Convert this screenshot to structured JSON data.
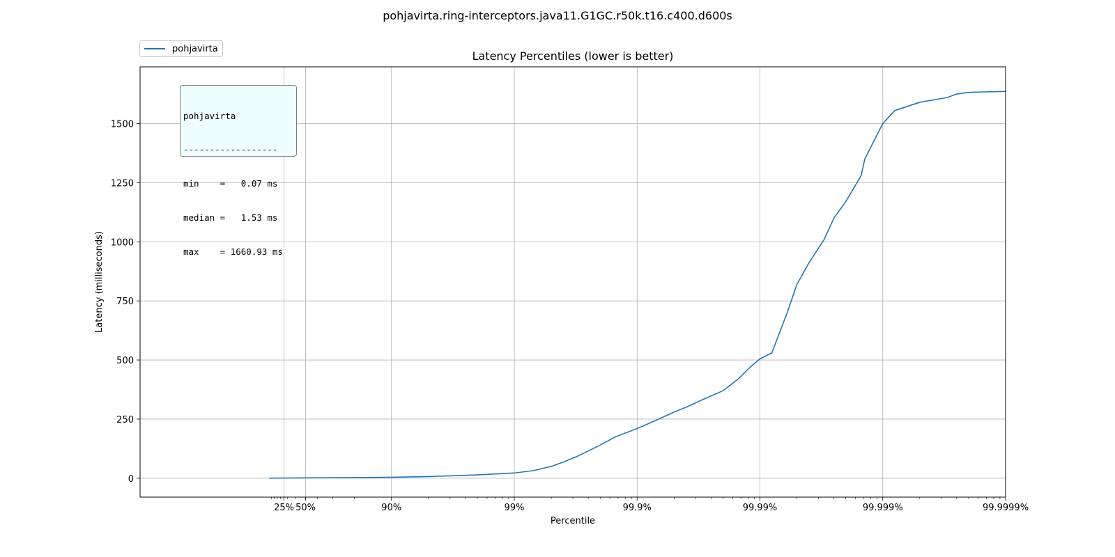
{
  "figure_title": "pohjavirta.ring-interceptors.java11.G1GC.r50k.t16.c400.d600s",
  "legend": {
    "entries": [
      {
        "label": "pohjavirta",
        "color": "#1f77b4"
      }
    ]
  },
  "stats_box": {
    "lines": [
      "pohjavirta",
      "------------------",
      "min    =   0.07 ms",
      "median =   1.53 ms",
      "max    = 1660.93 ms"
    ]
  },
  "chart_data": {
    "type": "line",
    "title": "Latency Percentiles (lower is better)",
    "xlabel": "Percentile",
    "ylabel": "Latency (milliseconds)",
    "x_scale": "log of 1/(1 - percentile)",
    "xlim_percentile": [
      0,
      99.9999
    ],
    "ylim": [
      -80,
      1740
    ],
    "grid": true,
    "legend_position": "above-left",
    "x_ticks": [
      {
        "percentile": 25,
        "label": "25%"
      },
      {
        "percentile": 50,
        "label": "50%"
      },
      {
        "percentile": 90,
        "label": "90%"
      },
      {
        "percentile": 99,
        "label": "99%"
      },
      {
        "percentile": 99.9,
        "label": "99.9%"
      },
      {
        "percentile": 99.99,
        "label": "99.99%"
      },
      {
        "percentile": 99.999,
        "label": "99.999%"
      },
      {
        "percentile": 99.9999,
        "label": "99.9999%"
      }
    ],
    "y_ticks": [
      0,
      250,
      500,
      750,
      1000,
      1250,
      1500
    ],
    "series": [
      {
        "name": "pohjavirta",
        "color": "#1f77b4",
        "points": [
          {
            "percentile": 1,
            "latency": 0.07
          },
          {
            "percentile": 25,
            "latency": 0.9
          },
          {
            "percentile": 50,
            "latency": 1.53
          },
          {
            "percentile": 75,
            "latency": 2.5
          },
          {
            "percentile": 90,
            "latency": 4
          },
          {
            "percentile": 95,
            "latency": 7
          },
          {
            "percentile": 98,
            "latency": 14
          },
          {
            "percentile": 99,
            "latency": 22
          },
          {
            "percentile": 99.3,
            "latency": 32
          },
          {
            "percentile": 99.5,
            "latency": 50
          },
          {
            "percentile": 99.6,
            "latency": 68
          },
          {
            "percentile": 99.7,
            "latency": 95
          },
          {
            "percentile": 99.8,
            "latency": 140
          },
          {
            "percentile": 99.85,
            "latency": 175
          },
          {
            "percentile": 99.9,
            "latency": 210
          },
          {
            "percentile": 99.93,
            "latency": 245
          },
          {
            "percentile": 99.95,
            "latency": 280
          },
          {
            "percentile": 99.96,
            "latency": 300
          },
          {
            "percentile": 99.97,
            "latency": 330
          },
          {
            "percentile": 99.98,
            "latency": 370
          },
          {
            "percentile": 99.985,
            "latency": 420
          },
          {
            "percentile": 99.988,
            "latency": 470
          },
          {
            "percentile": 99.99,
            "latency": 505
          },
          {
            "percentile": 99.992,
            "latency": 530
          },
          {
            "percentile": 99.994,
            "latency": 700
          },
          {
            "percentile": 99.995,
            "latency": 820
          },
          {
            "percentile": 99.996,
            "latency": 910
          },
          {
            "percentile": 99.997,
            "latency": 1010
          },
          {
            "percentile": 99.9975,
            "latency": 1100
          },
          {
            "percentile": 99.998,
            "latency": 1170
          },
          {
            "percentile": 99.9985,
            "latency": 1280
          },
          {
            "percentile": 99.9986,
            "latency": 1350
          },
          {
            "percentile": 99.999,
            "latency": 1500
          },
          {
            "percentile": 99.9992,
            "latency": 1555
          },
          {
            "percentile": 99.9995,
            "latency": 1590
          },
          {
            "percentile": 99.9997,
            "latency": 1610
          },
          {
            "percentile": 99.99975,
            "latency": 1625
          },
          {
            "percentile": 99.9998,
            "latency": 1632
          },
          {
            "percentile": 99.99985,
            "latency": 1634
          },
          {
            "percentile": 99.9999,
            "latency": 1636
          }
        ]
      }
    ]
  }
}
